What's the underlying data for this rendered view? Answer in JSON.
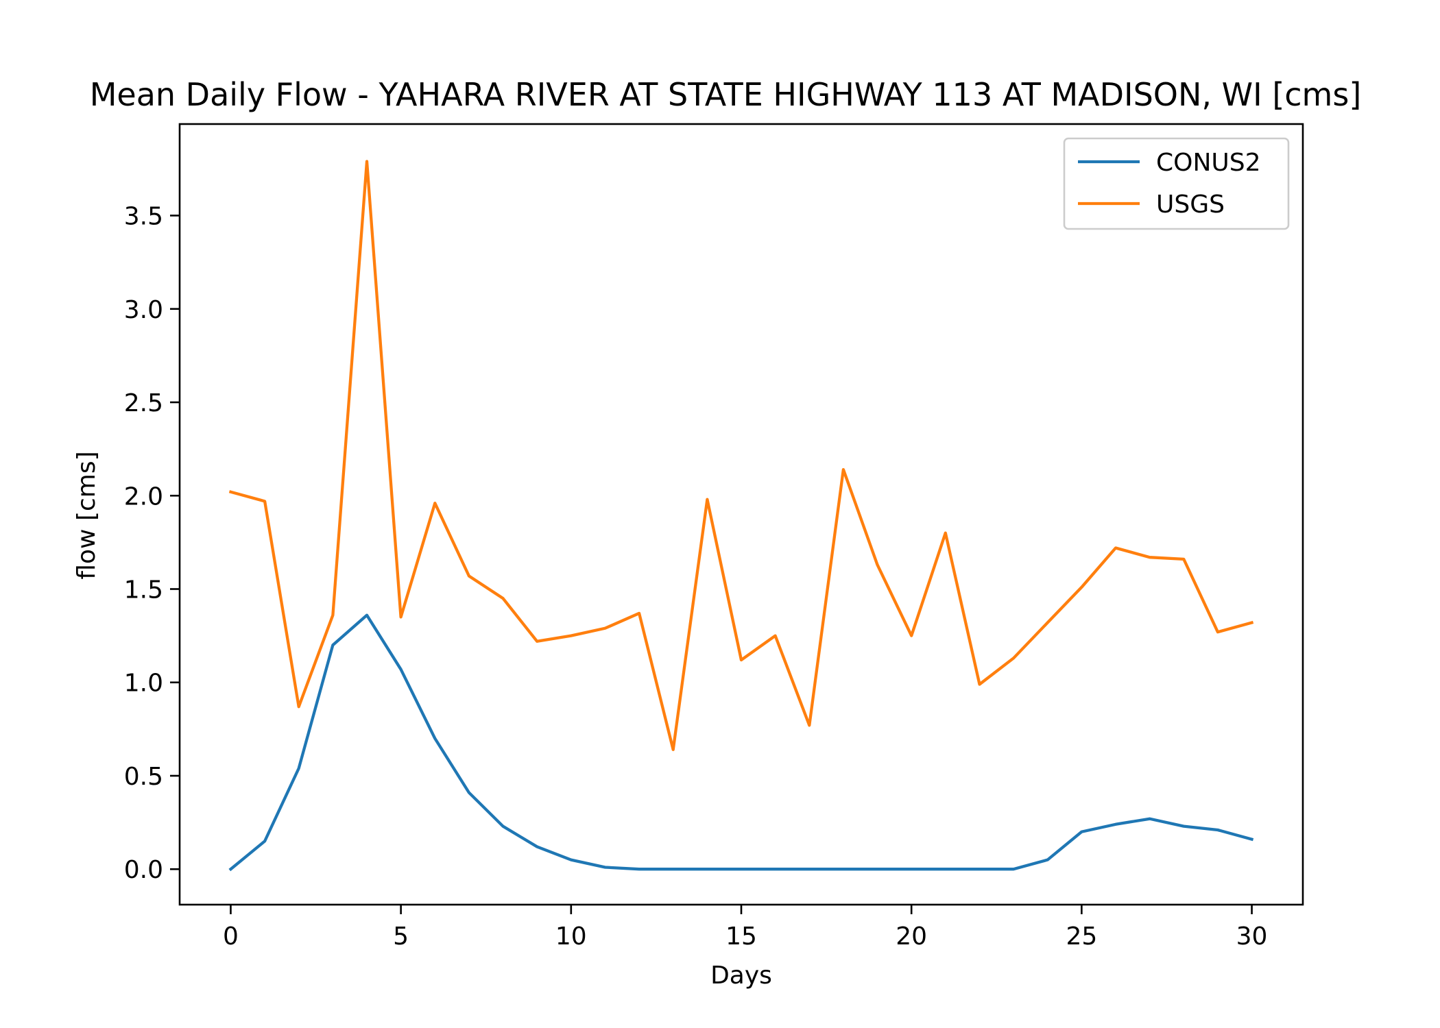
{
  "chart_data": {
    "type": "line",
    "title": "Mean Daily Flow - YAHARA RIVER AT STATE HIGHWAY 113 AT MADISON, WI [cms]",
    "xlabel": "Days",
    "ylabel": "flow [cms]",
    "xlim": [
      -1.5,
      31.5
    ],
    "ylim": [
      -0.19,
      3.99
    ],
    "xticks": [
      0,
      5,
      10,
      15,
      20,
      25,
      30
    ],
    "xtick_labels": [
      "0",
      "5",
      "10",
      "15",
      "20",
      "25",
      "30"
    ],
    "yticks": [
      0.0,
      0.5,
      1.0,
      1.5,
      2.0,
      2.5,
      3.0,
      3.5
    ],
    "ytick_labels": [
      "0.0",
      "0.5",
      "1.0",
      "1.5",
      "2.0",
      "2.5",
      "3.0",
      "3.5"
    ],
    "grid": false,
    "legend_position": "top-right",
    "x": [
      0,
      1,
      2,
      3,
      4,
      5,
      6,
      7,
      8,
      9,
      10,
      11,
      12,
      13,
      14,
      15,
      16,
      17,
      18,
      19,
      20,
      21,
      22,
      23,
      24,
      25,
      26,
      27,
      28,
      29,
      30
    ],
    "series": [
      {
        "name": "CONUS2",
        "color": "#1f77b4",
        "values": [
          0.0,
          0.15,
          0.54,
          1.2,
          1.36,
          1.07,
          0.7,
          0.41,
          0.23,
          0.12,
          0.05,
          0.01,
          0.0,
          0.0,
          0.0,
          0.0,
          0.0,
          0.0,
          0.0,
          0.0,
          0.0,
          0.0,
          0.0,
          0.0,
          0.05,
          0.2,
          0.24,
          0.27,
          0.23,
          0.21,
          0.16
        ]
      },
      {
        "name": "USGS",
        "color": "#ff7f0e",
        "values": [
          2.02,
          1.97,
          0.87,
          1.36,
          3.79,
          1.35,
          1.96,
          1.57,
          1.45,
          1.22,
          1.25,
          1.29,
          1.37,
          0.64,
          1.98,
          1.12,
          1.25,
          0.77,
          2.14,
          1.63,
          1.25,
          1.8,
          0.99,
          1.13,
          1.32,
          1.51,
          1.72,
          1.67,
          1.66,
          1.27,
          1.32
        ]
      }
    ]
  }
}
